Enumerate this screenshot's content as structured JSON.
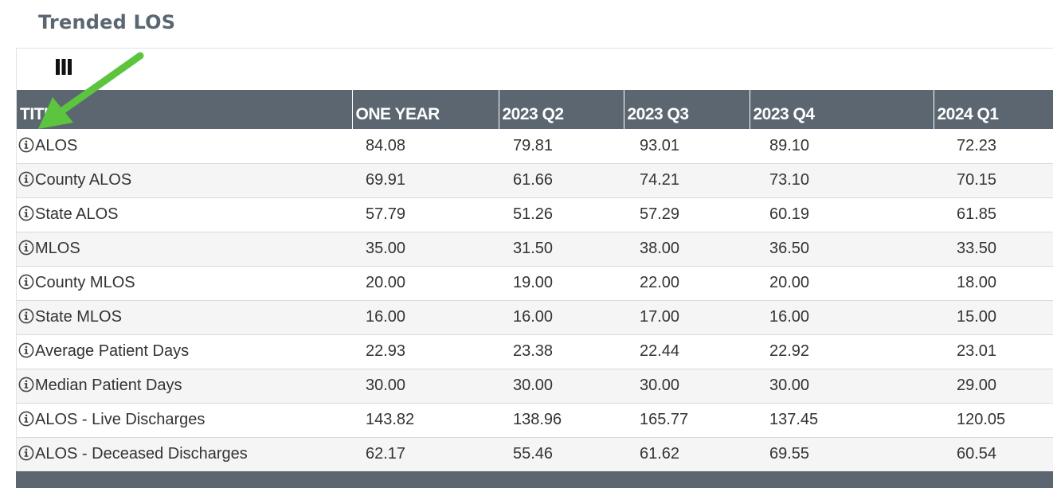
{
  "page": {
    "title": "Trended LOS"
  },
  "toolbar": {
    "columns_icon": "columns-icon"
  },
  "table": {
    "columns": [
      "TITLE",
      "ONE YEAR",
      "2023 Q2",
      "2023 Q3",
      "2023 Q4",
      "2024 Q1"
    ],
    "rows": [
      {
        "title": "ALOS",
        "values": [
          "84.08",
          "79.81",
          "93.01",
          "89.10",
          "72.23"
        ]
      },
      {
        "title": "County ALOS",
        "values": [
          "69.91",
          "61.66",
          "74.21",
          "73.10",
          "70.15"
        ]
      },
      {
        "title": "State ALOS",
        "values": [
          "57.79",
          "51.26",
          "57.29",
          "60.19",
          "61.85"
        ]
      },
      {
        "title": "MLOS",
        "values": [
          "35.00",
          "31.50",
          "38.00",
          "36.50",
          "33.50"
        ]
      },
      {
        "title": "County MLOS",
        "values": [
          "20.00",
          "19.00",
          "22.00",
          "20.00",
          "18.00"
        ]
      },
      {
        "title": "State MLOS",
        "values": [
          "16.00",
          "16.00",
          "17.00",
          "16.00",
          "15.00"
        ]
      },
      {
        "title": "Average Patient Days",
        "values": [
          "22.93",
          "23.38",
          "22.44",
          "22.92",
          "23.01"
        ]
      },
      {
        "title": "Median Patient Days",
        "values": [
          "30.00",
          "30.00",
          "30.00",
          "30.00",
          "29.00"
        ]
      },
      {
        "title": "ALOS - Live Discharges",
        "values": [
          "143.82",
          "138.96",
          "165.77",
          "137.45",
          "120.05"
        ]
      },
      {
        "title": "ALOS - Deceased Discharges",
        "values": [
          "62.17",
          "55.46",
          "61.62",
          "69.55",
          "60.54"
        ]
      }
    ]
  },
  "colors": {
    "header_bg": "#5c6670",
    "title_text": "#5a6672",
    "arrow": "#5cc43f",
    "row_alt": "#f5f5f5"
  },
  "annotation": {
    "arrow_icon": "green-arrow-icon"
  }
}
